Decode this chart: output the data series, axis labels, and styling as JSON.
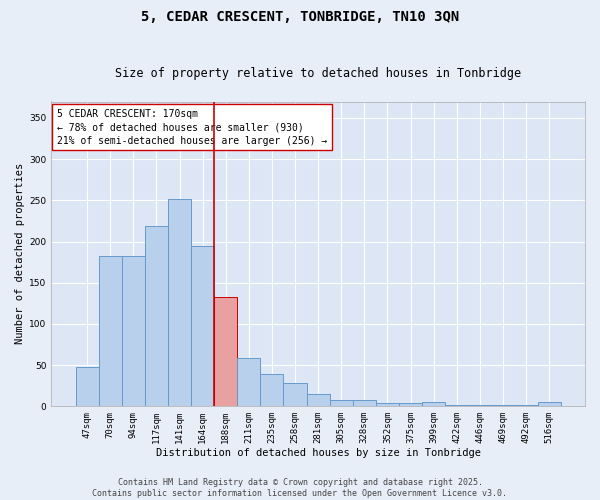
{
  "title": "5, CEDAR CRESCENT, TONBRIDGE, TN10 3QN",
  "subtitle": "Size of property relative to detached houses in Tonbridge",
  "xlabel": "Distribution of detached houses by size in Tonbridge",
  "ylabel": "Number of detached properties",
  "categories": [
    "47sqm",
    "70sqm",
    "94sqm",
    "117sqm",
    "141sqm",
    "164sqm",
    "188sqm",
    "211sqm",
    "235sqm",
    "258sqm",
    "281sqm",
    "305sqm",
    "328sqm",
    "352sqm",
    "375sqm",
    "399sqm",
    "422sqm",
    "446sqm",
    "469sqm",
    "492sqm",
    "516sqm"
  ],
  "values": [
    48,
    183,
    183,
    219,
    252,
    195,
    133,
    58,
    39,
    28,
    15,
    8,
    8,
    4,
    4,
    5,
    2,
    1,
    1,
    1,
    5
  ],
  "bar_color": "#b8d0eb",
  "bar_edge_color": "#6699cc",
  "highlight_bar_index": 6,
  "highlight_bar_color": "#e8a0a0",
  "highlight_bar_edge_color": "#cc0000",
  "vline_x": 5.5,
  "vline_color": "#cc0000",
  "annotation_title": "5 CEDAR CRESCENT: 170sqm",
  "annotation_line1": "← 78% of detached houses are smaller (930)",
  "annotation_line2": "21% of semi-detached houses are larger (256) →",
  "annotation_box_color": "#ffffff",
  "annotation_box_edge": "#cc0000",
  "ylim": [
    0,
    370
  ],
  "yticks": [
    0,
    50,
    100,
    150,
    200,
    250,
    300,
    350
  ],
  "background_color": "#e8eef8",
  "plot_bg_color": "#dce6f5",
  "footer_line1": "Contains HM Land Registry data © Crown copyright and database right 2025.",
  "footer_line2": "Contains public sector information licensed under the Open Government Licence v3.0.",
  "title_fontsize": 10,
  "subtitle_fontsize": 8.5,
  "axis_label_fontsize": 7.5,
  "tick_fontsize": 6.5,
  "annotation_fontsize": 7,
  "footer_fontsize": 6
}
